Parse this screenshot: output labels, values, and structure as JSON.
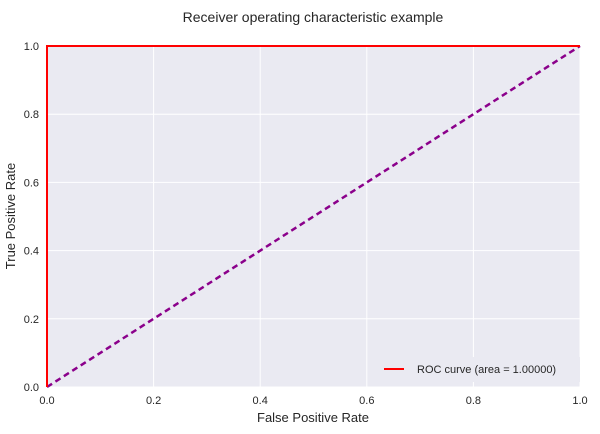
{
  "chart_data": {
    "type": "line",
    "title": "Receiver operating characteristic example",
    "xlabel": "False Positive Rate",
    "ylabel": "True Positive Rate",
    "xlim": [
      0.0,
      1.0
    ],
    "ylim": [
      0.0,
      1.0
    ],
    "xticks": [
      "0.0",
      "0.2",
      "0.4",
      "0.6",
      "0.8",
      "1.0"
    ],
    "yticks": [
      "0.0",
      "0.2",
      "0.4",
      "0.6",
      "0.8",
      "1.0"
    ],
    "grid": true,
    "legend_position": "lower right",
    "series": [
      {
        "name": "ROC curve (area = 1.00000)",
        "x": [
          0.0,
          0.0,
          1.0
        ],
        "y": [
          0.0,
          1.0,
          1.0
        ],
        "color": "#ff0000",
        "style": "solid"
      },
      {
        "x": [
          0.0,
          1.0
        ],
        "y": [
          0.0,
          1.0
        ],
        "color": "#8b008b",
        "style": "dashed"
      }
    ],
    "background_color": "#eaeaf2",
    "grid_color": "#ffffff"
  }
}
